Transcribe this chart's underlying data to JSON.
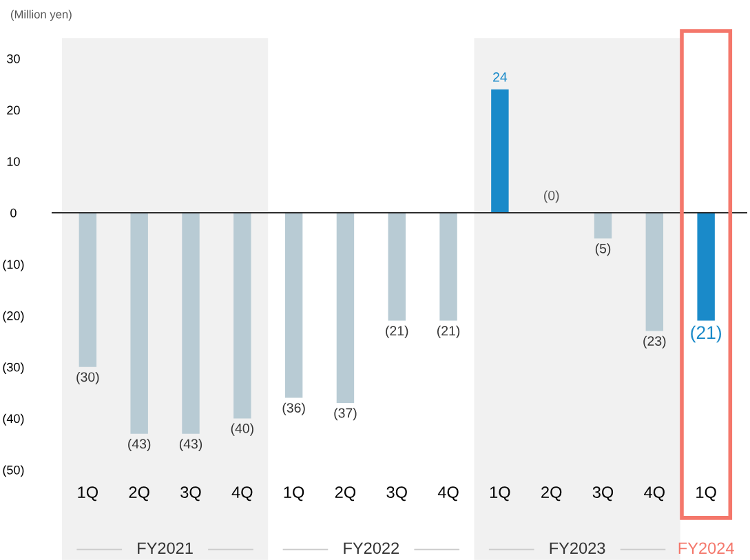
{
  "chart_data": {
    "type": "bar",
    "ylabel": "(Million yen)",
    "categories": [
      "1Q",
      "2Q",
      "3Q",
      "4Q",
      "1Q",
      "2Q",
      "3Q",
      "4Q",
      "1Q",
      "2Q",
      "3Q",
      "4Q",
      "1Q"
    ],
    "values": [
      -30,
      -43,
      -43,
      -40,
      -36,
      -37,
      -21,
      -21,
      24,
      0,
      -5,
      -23,
      -21
    ],
    "value_labels": [
      "(30)",
      "(43)",
      "(43)",
      "(40)",
      "(36)",
      "(37)",
      "(21)",
      "(21)",
      "24",
      "(0)",
      "(5)",
      "(23)",
      "(21)"
    ],
    "color": "#b8cbd4",
    "colors": [
      "#b8cbd4",
      "#b8cbd4",
      "#b8cbd4",
      "#b8cbd4",
      "#b8cbd4",
      "#b8cbd4",
      "#b8cbd4",
      "#b8cbd4",
      "#1a8ac9",
      "#b8cbd4",
      "#b8cbd4",
      "#b8cbd4",
      "#1a8ac9"
    ],
    "ylim": [
      -50,
      30
    ],
    "yticks": [
      {
        "value": -50,
        "label": "(50)"
      },
      {
        "value": -40,
        "label": "(40)"
      },
      {
        "value": -30,
        "label": "(30)"
      },
      {
        "value": -20,
        "label": "(20)"
      },
      {
        "value": -10,
        "label": "(10)"
      },
      0,
      10,
      20,
      30
    ],
    "annotations": [
      "FY2021",
      "FY2022",
      "FY2023",
      "FY2024"
    ]
  }
}
